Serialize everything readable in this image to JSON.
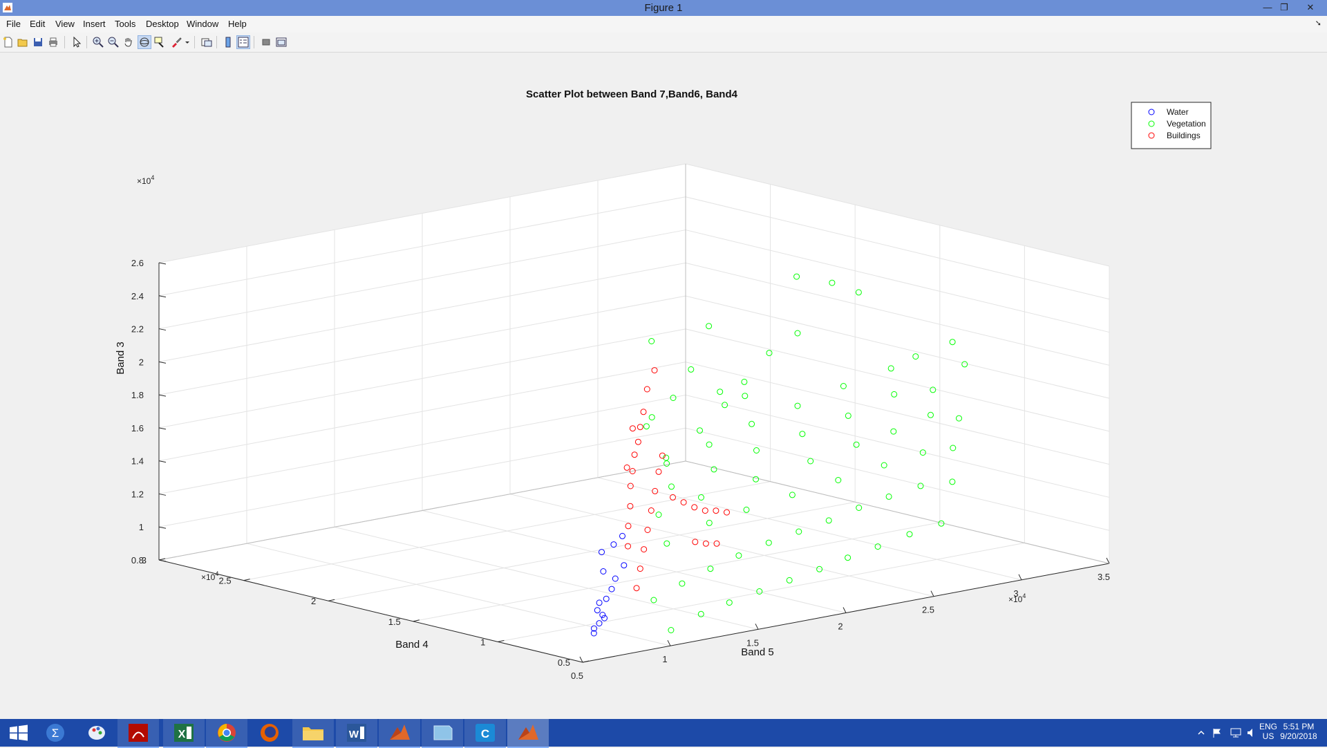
{
  "window": {
    "title": "Figure 1"
  },
  "menu": [
    "File",
    "Edit",
    "View",
    "Insert",
    "Tools",
    "Desktop",
    "Window",
    "Help"
  ],
  "toolbar": [
    "new-figure-icon",
    "open-file-icon",
    "save-icon",
    "print-icon",
    "edit-plot-icon",
    "zoom-in-icon",
    "zoom-out-icon",
    "pan-icon",
    "rotate-3d-icon",
    "data-cursor-icon",
    "brush-icon",
    "brush-dropdown-icon",
    "link-plot-icon",
    "colorbar-icon",
    "legend-icon",
    "hide-plot-tools-icon",
    "show-plot-tools-icon"
  ],
  "chart_data": {
    "type": "scatter",
    "dimensions": 3,
    "title": "Scatter Plot between Band 7,Band6, Band4",
    "xlabel": "Band 5",
    "ylabel": "Band 4",
    "zlabel": "Band 3",
    "xlim": [
      5000,
      35000
    ],
    "ylim": [
      5000,
      30000
    ],
    "zlim": [
      8000,
      26000
    ],
    "exponent_label": "×10",
    "exponent_power": "4",
    "xticks": [
      "0.5",
      "1",
      "1.5",
      "2",
      "2.5",
      "3",
      "3.5"
    ],
    "yticks": [
      "0.5",
      "1",
      "1.5",
      "2",
      "2.5",
      "3"
    ],
    "zticks": [
      "0.8",
      "1",
      "1.2",
      "1.4",
      "1.6",
      "1.8",
      "2",
      "2.2",
      "2.4",
      "2.6"
    ],
    "grid": true,
    "legend_position": "top-right",
    "marker": "circle",
    "series": [
      {
        "name": "Water",
        "color": "#0000ff",
        "points": [
          [
            6800,
            6200,
            9100
          ],
          [
            7000,
            6400,
            9300
          ],
          [
            7200,
            6300,
            9600
          ],
          [
            7400,
            6200,
            9900
          ],
          [
            7100,
            6000,
            10200
          ],
          [
            6900,
            6100,
            10500
          ],
          [
            7300,
            6400,
            10800
          ],
          [
            7600,
            6300,
            11000
          ],
          [
            8200,
            6600,
            11400
          ],
          [
            8600,
            6800,
            11900
          ],
          [
            8300,
            7200,
            12300
          ],
          [
            8900,
            6600,
            12700
          ],
          [
            8400,
            7400,
            13400
          ],
          [
            8700,
            7000,
            13900
          ],
          [
            9000,
            6800,
            14400
          ]
        ]
      },
      {
        "name": "Vegetation",
        "color": "#00ff00",
        "points": [
          [
            11000,
            6000,
            8500
          ],
          [
            13000,
            6300,
            9000
          ],
          [
            15000,
            6700,
            9200
          ],
          [
            17000,
            7000,
            9400
          ],
          [
            19000,
            7300,
            9600
          ],
          [
            21000,
            7600,
            9800
          ],
          [
            23000,
            8000,
            10000
          ],
          [
            25000,
            8300,
            10200
          ],
          [
            27000,
            8500,
            10500
          ],
          [
            29000,
            8700,
            10700
          ],
          [
            10500,
            6500,
            10300
          ],
          [
            12500,
            6900,
            10800
          ],
          [
            14500,
            7300,
            11200
          ],
          [
            16500,
            7700,
            11500
          ],
          [
            18500,
            8000,
            11800
          ],
          [
            20500,
            8300,
            12000
          ],
          [
            22500,
            8600,
            12200
          ],
          [
            24500,
            8900,
            12500
          ],
          [
            26500,
            9200,
            12700
          ],
          [
            28500,
            9400,
            12900
          ],
          [
            30500,
            9600,
            12700
          ],
          [
            12500,
            7800,
            13000
          ],
          [
            15500,
            8400,
            13500
          ],
          [
            18000,
            8800,
            13700
          ],
          [
            21000,
            9200,
            13900
          ],
          [
            24000,
            9600,
            14100
          ],
          [
            27000,
            10000,
            14300
          ],
          [
            29500,
            10300,
            14500
          ],
          [
            31500,
            10600,
            14300
          ],
          [
            13000,
            8800,
            14400
          ],
          [
            16000,
            9400,
            14700
          ],
          [
            19500,
            9800,
            15000
          ],
          [
            23000,
            10200,
            15300
          ],
          [
            26000,
            10600,
            15600
          ],
          [
            28500,
            11000,
            15800
          ],
          [
            31000,
            11400,
            16200
          ],
          [
            33000,
            11800,
            15500
          ],
          [
            14500,
            9600,
            15600
          ],
          [
            17500,
            10200,
            15900
          ],
          [
            20500,
            10800,
            16300
          ],
          [
            23500,
            11200,
            16600
          ],
          [
            26500,
            11600,
            17000
          ],
          [
            29500,
            12000,
            17600
          ],
          [
            32000,
            12300,
            17300
          ],
          [
            34000,
            12500,
            18400
          ],
          [
            15000,
            10400,
            16700
          ],
          [
            18000,
            11000,
            17100
          ],
          [
            21000,
            11600,
            17600
          ],
          [
            24000,
            12000,
            18000
          ],
          [
            27000,
            12400,
            18500
          ],
          [
            30000,
            12700,
            18900
          ],
          [
            31500,
            12800,
            19300
          ],
          [
            33500,
            12700,
            19800
          ],
          [
            14000,
            9400,
            17500
          ],
          [
            16500,
            10000,
            18500
          ],
          [
            18500,
            10600,
            19500
          ],
          [
            20000,
            11000,
            20500
          ],
          [
            22000,
            11600,
            21700
          ],
          [
            24000,
            12000,
            22400
          ],
          [
            12500,
            9000,
            19800
          ],
          [
            14500,
            9500,
            21000
          ],
          [
            16000,
            10000,
            22300
          ],
          [
            17500,
            10500,
            24500
          ],
          [
            15200,
            11500,
            23800
          ],
          [
            22500,
            10500,
            26500
          ],
          [
            25000,
            11000,
            25500
          ],
          [
            27000,
            11500,
            24400
          ],
          [
            13000,
            9200,
            20200
          ],
          [
            19000,
            11400,
            20000
          ],
          [
            21000,
            12000,
            19200
          ]
        ]
      },
      {
        "name": "Buildings",
        "color": "#ff0000",
        "points": [
          [
            10000,
            7000,
            11000
          ],
          [
            10500,
            7300,
            12000
          ],
          [
            11000,
            7600,
            13000
          ],
          [
            11500,
            7900,
            14000
          ],
          [
            12000,
            8200,
            15000
          ],
          [
            12500,
            8500,
            16000
          ],
          [
            13000,
            8800,
            17000
          ],
          [
            13500,
            9100,
            17800
          ],
          [
            9800,
            7300,
            13500
          ],
          [
            10300,
            7800,
            14500
          ],
          [
            10800,
            8200,
            15500
          ],
          [
            11300,
            8700,
            16500
          ],
          [
            11800,
            9100,
            17200
          ],
          [
            12300,
            9500,
            18000
          ],
          [
            12800,
            9800,
            18600
          ],
          [
            13300,
            10200,
            19300
          ],
          [
            14000,
            9000,
            15200
          ],
          [
            15000,
            9400,
            14600
          ],
          [
            16000,
            9800,
            14000
          ],
          [
            17000,
            10200,
            13500
          ],
          [
            18000,
            10600,
            13200
          ],
          [
            19000,
            11000,
            12800
          ],
          [
            14500,
            8200,
            12600
          ],
          [
            15500,
            8600,
            12200
          ],
          [
            16500,
            9000,
            11900
          ],
          [
            11000,
            8600,
            17700
          ],
          [
            12000,
            9300,
            19700
          ],
          [
            13000,
            9700,
            20400
          ],
          [
            13500,
            10000,
            21600
          ],
          [
            14500,
            10600,
            22400
          ]
        ]
      }
    ]
  }
}
